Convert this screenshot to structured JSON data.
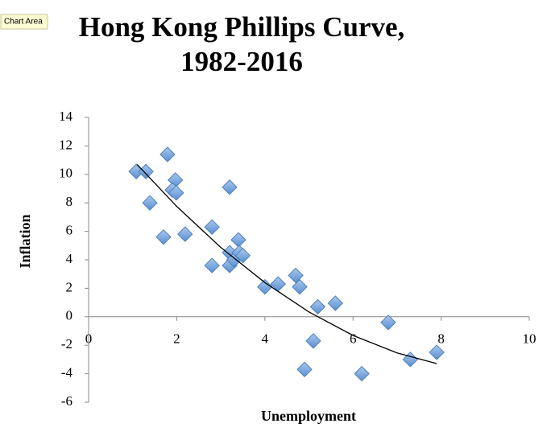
{
  "tooltip": "Chart Area",
  "chart_data": {
    "type": "scatter",
    "title": [
      "Hong Kong Phillips Curve,",
      "1982-2016"
    ],
    "x_label": "Unemployment",
    "y_label": "Inflation",
    "series": [
      {
        "name": "Inflation",
        "color": "#7ba7dc",
        "x": [
          1.08,
          1.3,
          1.39,
          1.79,
          1.7,
          1.97,
          1.9,
          1.99,
          2.19,
          2.8,
          2.8,
          3.2,
          3.2,
          3.2,
          3.4,
          3.3,
          3.42,
          3.5,
          4.0,
          4.3,
          4.7,
          4.79,
          5.2,
          5.6,
          5.1,
          4.9,
          6.2,
          6.8,
          7.3,
          7.9
        ],
        "values": [
          10.2,
          10.2,
          8.0,
          11.4,
          5.6,
          9.6,
          8.9,
          8.7,
          5.8,
          6.3,
          3.6,
          9.1,
          4.5,
          3.6,
          5.4,
          4.0,
          4.5,
          4.3,
          2.1,
          2.3,
          2.9,
          2.1,
          0.7,
          0.95,
          -1.7,
          -3.7,
          -4.0,
          -0.4,
          -3.0,
          -2.5
        ]
      }
    ],
    "trendline": {
      "color": "#000000",
      "x": [
        1.1,
        2,
        3,
        4,
        5,
        6,
        7,
        7.9
      ],
      "values": [
        10.7,
        7.75,
        4.87,
        2.4,
        0.34,
        -1.31,
        -2.54,
        -3.29
      ]
    },
    "xlim": [
      0,
      10
    ],
    "xticks": [
      0,
      2,
      4,
      6,
      8,
      10
    ],
    "ylim": [
      -6,
      14
    ],
    "yticks": [
      -6,
      -4,
      -2,
      0,
      2,
      4,
      6,
      8,
      10,
      12,
      14
    ]
  }
}
